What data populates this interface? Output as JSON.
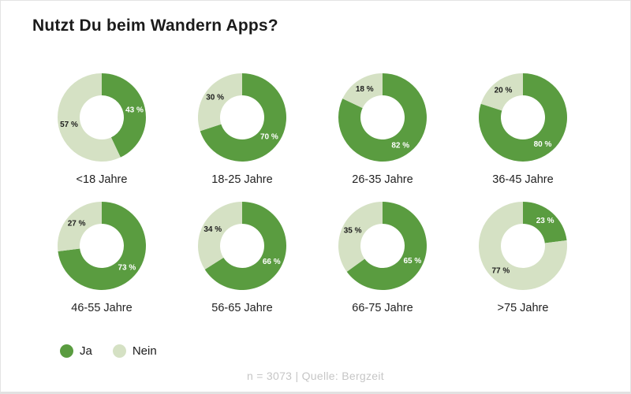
{
  "card": {
    "title": "Nutzt Du beim Wandern Apps?",
    "footer_note": "n = 3073 | Quelle: Bergzeit"
  },
  "legend": {
    "items": [
      {
        "label": "Ja",
        "color": "#5a9c40"
      },
      {
        "label": "Nein",
        "color": "#d5e1c4"
      }
    ]
  },
  "chart_data": {
    "type": "pie",
    "variant": "donut_small_multiples",
    "title": "Nutzt Du beim Wandern Apps?",
    "series_labels": [
      "Ja",
      "Nein"
    ],
    "colors": {
      "Ja": "#5a9c40",
      "Nein": "#d5e1c4"
    },
    "value_label_colors": {
      "Ja": "#ffffff",
      "Nein": "#1c1c1c"
    },
    "unit": "%",
    "value_label_format": "{value} %",
    "legend_position": "bottom-left",
    "note": "n = 3073 | Quelle: Bergzeit",
    "groups": [
      {
        "category": "<18 Jahre",
        "values": {
          "Ja": 43,
          "Nein": 57
        }
      },
      {
        "category": "18-25 Jahre",
        "values": {
          "Ja": 70,
          "Nein": 30
        }
      },
      {
        "category": "26-35 Jahre",
        "values": {
          "Ja": 82,
          "Nein": 18
        }
      },
      {
        "category": "36-45 Jahre",
        "values": {
          "Ja": 80,
          "Nein": 20
        }
      },
      {
        "category": "46-55 Jahre",
        "values": {
          "Ja": 73,
          "Nein": 27
        }
      },
      {
        "category": "56-65 Jahre",
        "values": {
          "Ja": 66,
          "Nein": 34
        }
      },
      {
        "category": "66-75 Jahre",
        "values": {
          "Ja": 65,
          "Nein": 35
        }
      },
      {
        "category": ">75 Jahre",
        "values": {
          "Ja": 23,
          "Nein": 77
        }
      }
    ]
  }
}
